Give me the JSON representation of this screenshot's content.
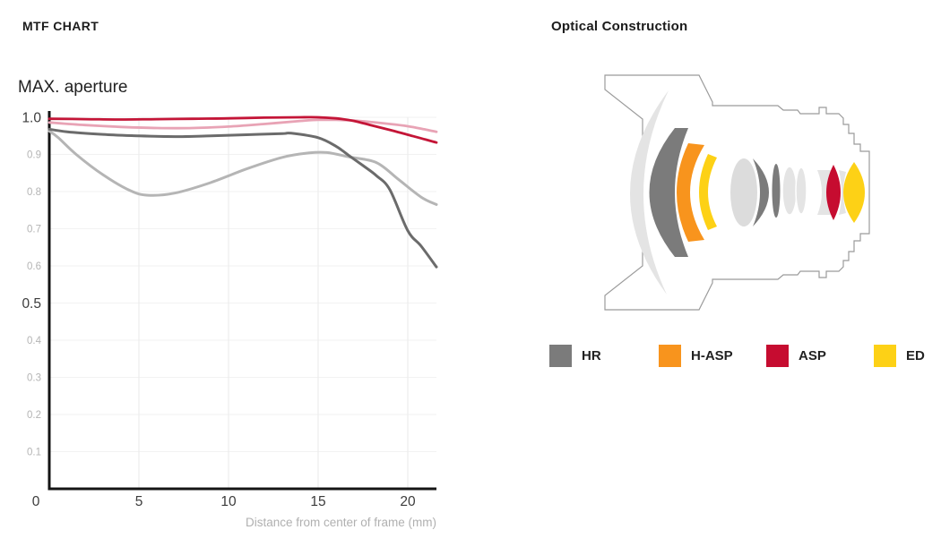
{
  "mtf": {
    "title": "MTF CHART",
    "subtitle": "MAX. aperture",
    "chart_data": {
      "type": "line",
      "title": "MAX. aperture",
      "xlabel": "Distance from center of frame (mm)",
      "ylabel": "",
      "xlim": [
        0,
        21.6
      ],
      "ylim": [
        0,
        1.0
      ],
      "grid": true,
      "legend_position": "none",
      "x_ticks": [
        {
          "v": 0,
          "label": "0"
        },
        {
          "v": 5,
          "label": "5"
        },
        {
          "v": 10,
          "label": "10"
        },
        {
          "v": 15,
          "label": "15"
        },
        {
          "v": 20,
          "label": "20"
        }
      ],
      "y_ticks_major": [
        {
          "v": 1.0,
          "label": "1.0"
        },
        {
          "v": 0.5,
          "label": "0.5"
        }
      ],
      "y_ticks_minor": [
        {
          "v": 0.9,
          "label": "0.9"
        },
        {
          "v": 0.8,
          "label": "0.8"
        },
        {
          "v": 0.7,
          "label": "0.7"
        },
        {
          "v": 0.6,
          "label": "0.6"
        },
        {
          "v": 0.4,
          "label": "0.4"
        },
        {
          "v": 0.3,
          "label": "0.3"
        },
        {
          "v": 0.2,
          "label": "0.2"
        },
        {
          "v": 0.1,
          "label": "0.1"
        }
      ],
      "series": [
        {
          "name": "light-gray-curve",
          "color": "#b5b5b5",
          "width": 3,
          "x": [
            0,
            0.5,
            1.5,
            3,
            4.5,
            5.5,
            7,
            9,
            11,
            13,
            14.5,
            15.5,
            16.75,
            18.25,
            19.5,
            20.75,
            21.6
          ],
          "y": [
            0.963,
            0.945,
            0.9,
            0.845,
            0.803,
            0.79,
            0.796,
            0.824,
            0.861,
            0.892,
            0.904,
            0.905,
            0.893,
            0.878,
            0.832,
            0.785,
            0.765
          ]
        },
        {
          "name": "dark-gray-curve",
          "color": "#6b6b6b",
          "width": 3,
          "x": [
            0,
            1,
            3,
            5,
            7,
            9,
            11,
            13,
            13.5,
            15,
            16,
            16.75,
            17.5,
            18.25,
            19,
            20,
            20.75,
            21.6
          ],
          "y": [
            0.968,
            0.961,
            0.954,
            0.95,
            0.948,
            0.95,
            0.953,
            0.956,
            0.957,
            0.945,
            0.922,
            0.896,
            0.87,
            0.843,
            0.805,
            0.695,
            0.653,
            0.597
          ]
        },
        {
          "name": "pink-curve",
          "color": "#e8a3b5",
          "width": 2.8,
          "x": [
            0,
            2,
            4,
            6,
            8,
            10,
            12,
            14,
            15,
            16,
            17,
            18,
            19,
            20,
            21,
            21.6
          ],
          "y": [
            0.986,
            0.979,
            0.974,
            0.971,
            0.971,
            0.975,
            0.982,
            0.99,
            0.993,
            0.993,
            0.991,
            0.987,
            0.982,
            0.976,
            0.967,
            0.961
          ]
        },
        {
          "name": "red-curve",
          "color": "#c41537",
          "width": 2.8,
          "x": [
            0,
            2,
            4,
            6,
            8,
            10,
            12,
            14,
            15,
            16,
            17,
            18,
            19,
            20,
            21,
            21.6
          ],
          "y": [
            0.996,
            0.995,
            0.994,
            0.995,
            0.996,
            0.997,
            0.999,
            1.0,
            1.0,
            0.997,
            0.99,
            0.978,
            0.966,
            0.953,
            0.94,
            0.932
          ]
        }
      ]
    }
  },
  "optical": {
    "title": "Optical Construction",
    "legend": [
      {
        "label": "HR",
        "color": "#7b7b7b"
      },
      {
        "label": "H-ASP",
        "color": "#f8941d"
      },
      {
        "label": "ASP",
        "color": "#c60c30"
      },
      {
        "label": "ED",
        "color": "#fdd116"
      }
    ],
    "glass": {
      "light": "#e4e4e4",
      "mid": "#dcdcdc",
      "outline": "#9b9b9b"
    }
  }
}
